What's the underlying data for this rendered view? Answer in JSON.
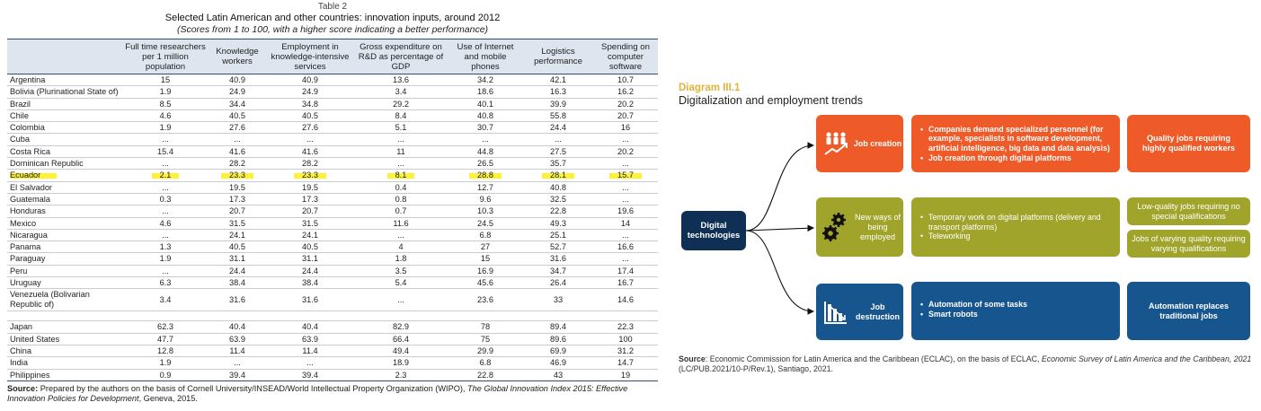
{
  "table": {
    "caption": "Table 2",
    "title": "Selected Latin American and other countries: innovation inputs, around 2012",
    "subtitle": "(Scores from 1 to 100, with a higher score indicating a better performance)",
    "columns": [
      "",
      "Full time researchers per 1 million population",
      "Knowledge workers",
      "Employment in knowledge-intensive services",
      "Gross expenditure on R&D as percentage of GDP",
      "Use of Internet and mobile phones",
      "Logistics performance",
      "Spending on computer software"
    ],
    "latam_rows": [
      {
        "country": "Argentina",
        "values": [
          "15",
          "40.9",
          "40.9",
          "13.6",
          "34.2",
          "42.1",
          "10.7"
        ]
      },
      {
        "country": "Bolivia (Plurinational State of)",
        "values": [
          "1.9",
          "24.9",
          "24.9",
          "3.4",
          "18.6",
          "16.3",
          "16.2"
        ]
      },
      {
        "country": "Brazil",
        "values": [
          "8.5",
          "34.4",
          "34.8",
          "29.2",
          "40.1",
          "39.9",
          "20.2"
        ]
      },
      {
        "country": "Chile",
        "values": [
          "4.6",
          "40.5",
          "40.5",
          "8.4",
          "40.8",
          "55.8",
          "20.7"
        ]
      },
      {
        "country": "Colombia",
        "values": [
          "1.9",
          "27.6",
          "27.6",
          "5.1",
          "30.7",
          "24.4",
          "16"
        ]
      },
      {
        "country": "Cuba",
        "values": [
          "...",
          "...",
          "...",
          "...",
          "...",
          "...",
          "..."
        ]
      },
      {
        "country": "Costa Rica",
        "values": [
          "15.4",
          "41.6",
          "41.6",
          "11",
          "44.8",
          "27.5",
          "20.2"
        ]
      },
      {
        "country": "Dominican Republic",
        "values": [
          "...",
          "28.2",
          "28.2",
          "...",
          "26.5",
          "35.7",
          "..."
        ]
      },
      {
        "country": "Ecuador",
        "values": [
          "2.1",
          "23.3",
          "23.3",
          "8.1",
          "28.8",
          "28.1",
          "15.7"
        ],
        "highlight": true
      },
      {
        "country": "El Salvador",
        "values": [
          "...",
          "19.5",
          "19.5",
          "0.4",
          "12.7",
          "40.8",
          "..."
        ]
      },
      {
        "country": "Guatemala",
        "values": [
          "0.3",
          "17.3",
          "17.3",
          "0.8",
          "9.6",
          "32.5",
          "..."
        ]
      },
      {
        "country": "Honduras",
        "values": [
          "...",
          "20.7",
          "20.7",
          "0.7",
          "10.3",
          "22.8",
          "19.6"
        ]
      },
      {
        "country": "Mexico",
        "values": [
          "4.6",
          "31.5",
          "31.5",
          "11.6",
          "24.5",
          "49.3",
          "14"
        ]
      },
      {
        "country": "Nicaragua",
        "values": [
          "...",
          "24.1",
          "24.1",
          "...",
          "6.8",
          "25.1",
          "..."
        ]
      },
      {
        "country": "Panama",
        "values": [
          "1.3",
          "40.5",
          "40.5",
          "4",
          "27",
          "52.7",
          "16.6"
        ]
      },
      {
        "country": "Paraguay",
        "values": [
          "1.9",
          "31.1",
          "31.1",
          "1.8",
          "15",
          "31.6",
          "..."
        ]
      },
      {
        "country": "Peru",
        "values": [
          "...",
          "24.4",
          "24.4",
          "3.5",
          "16.9",
          "34.7",
          "17.4"
        ]
      },
      {
        "country": "Uruguay",
        "values": [
          "6.3",
          "38.4",
          "38.4",
          "5.4",
          "45.6",
          "26.4",
          "16.7"
        ]
      },
      {
        "country": "Venezuela (Bolivarian Republic of)",
        "values": [
          "3.4",
          "31.6",
          "31.6",
          "...",
          "23.6",
          "33",
          "14.6"
        ],
        "wrap": true
      }
    ],
    "other_rows": [
      {
        "country": "Japan",
        "values": [
          "62.3",
          "40.4",
          "40.4",
          "82.9",
          "78",
          "89.4",
          "22.3"
        ]
      },
      {
        "country": "United States",
        "values": [
          "47.7",
          "63.9",
          "63.9",
          "66.4",
          "75",
          "89.6",
          "100"
        ]
      },
      {
        "country": "China",
        "values": [
          "12.8",
          "11.4",
          "11.4",
          "49.4",
          "29.9",
          "69.9",
          "31.2"
        ]
      },
      {
        "country": "India",
        "values": [
          "1.9",
          "...",
          "...",
          "18.9",
          "6.8",
          "46.9",
          "14.7"
        ]
      },
      {
        "country": "Philippines",
        "values": [
          "0.9",
          "39.4",
          "39.4",
          "2.3",
          "22.8",
          "43",
          "19"
        ]
      }
    ],
    "source_label": "Source:",
    "source_pre": "Prepared by the authors on the basis of Cornell University/INSEAD/World Intellectual Property Organization (WIPO), ",
    "source_italic": "The Global Innovation Index 2015: Effective Innovation Policies for Development",
    "source_post": ", Geneva, 2015."
  },
  "diagram": {
    "label": "Diagram III.1",
    "title": "Digitalization and employment trends",
    "hub": "Digital technologies",
    "creation": {
      "label": "Job creation",
      "icon": "people-growth-icon",
      "bullets": [
        "Companies demand specialized personnel (for example, specialists in software development, artificial intelligence, big data and data analysis)",
        "Job creation through digital platforms"
      ],
      "outcome": "Quality jobs requiring highly qualified workers"
    },
    "new_ways": {
      "label": "New ways of being employed",
      "icon": "gears-icon",
      "bullets": [
        "Temporary work on digital platforms (delivery and transport platforms)",
        "Teleworking"
      ],
      "outcome_1": "Low-quality jobs requiring no special qualifications",
      "outcome_2": "Jobs of varying quality requiring varying qualifications"
    },
    "destruction": {
      "label": "Job destruction",
      "icon": "declining-chart-icon",
      "bullets": [
        "Automation of some tasks",
        "Smart robots"
      ],
      "outcome": "Automation replaces traditional jobs"
    },
    "colors": {
      "orange": "#ee5a28",
      "olive": "#a0a42a",
      "navy": "#17558f",
      "dark": "#0f2f55",
      "label": "#e3b23c"
    },
    "source_label": "Source",
    "source_pre": ": Economic Commission for Latin America and the Caribbean (ECLAC), on the basis of ECLAC, ",
    "source_italic": "Economic Survey of Latin America and the Caribbean, 2021",
    "source_post": " (LC/PUB.2021/10-P/Rev.1), Santiago, 2021."
  }
}
